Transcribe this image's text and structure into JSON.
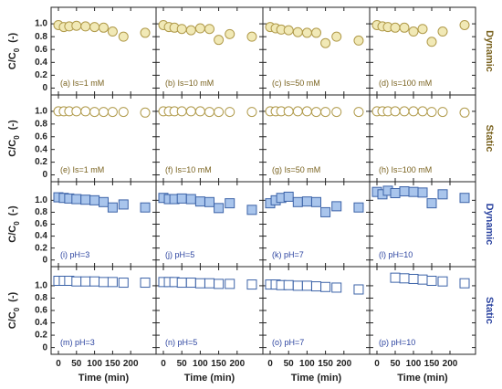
{
  "figure": {
    "ylabel": "C/C",
    "ylabel_sub": "0",
    "ylabel_unit": "(-)",
    "xlabel": "Time (min)",
    "x_ticks": [
      "0",
      "50",
      "100",
      "150",
      "200"
    ],
    "y_ticks": [
      "0",
      "0.2",
      "0.4",
      "0.6",
      "0.8",
      "1.0"
    ],
    "row_labels": [
      "Dynamic",
      "Static",
      "Dynamic",
      "Static"
    ],
    "colors": {
      "ionic_marker_fill": "#f1e9b6",
      "ionic_marker_stroke": "#b09a4a",
      "ionic_text": "#7a6320",
      "ph_marker_fill": "#a9c5ec",
      "ph_marker_stroke": "#3c63a8",
      "ph_text": "#2c44a0",
      "axes": "#222222"
    }
  },
  "chart_data": [
    {
      "type": "scatter",
      "label": "(a) Is=1 mM",
      "x": [
        0,
        15,
        30,
        50,
        75,
        100,
        125,
        150,
        180,
        240
      ],
      "y": [
        0.98,
        0.95,
        0.96,
        0.97,
        0.96,
        0.95,
        0.94,
        0.88,
        0.8,
        0.86
      ],
      "xlim": [
        0,
        250
      ],
      "ylim": [
        -0.05,
        1.2
      ],
      "marker": "circle",
      "series_group": "ionic"
    },
    {
      "type": "scatter",
      "label": "(b) Is=10 mM",
      "x": [
        0,
        15,
        30,
        50,
        75,
        100,
        125,
        150,
        180,
        240
      ],
      "y": [
        0.98,
        0.95,
        0.94,
        0.92,
        0.9,
        0.93,
        0.92,
        0.75,
        0.84,
        0.8
      ],
      "xlim": [
        0,
        250
      ],
      "ylim": [
        -0.05,
        1.2
      ],
      "marker": "circle",
      "series_group": "ionic"
    },
    {
      "type": "scatter",
      "label": "(c) Is=50 mM",
      "x": [
        0,
        15,
        30,
        50,
        75,
        100,
        125,
        150,
        180,
        240
      ],
      "y": [
        0.95,
        0.93,
        0.91,
        0.9,
        0.87,
        0.86,
        0.86,
        0.7,
        0.8,
        0.74
      ],
      "xlim": [
        0,
        250
      ],
      "ylim": [
        -0.05,
        1.2
      ],
      "marker": "circle",
      "series_group": "ionic"
    },
    {
      "type": "scatter",
      "label": "(d) Is=100 mM",
      "x": [
        0,
        15,
        30,
        50,
        75,
        100,
        125,
        150,
        180,
        240
      ],
      "y": [
        0.98,
        0.96,
        0.95,
        0.94,
        0.94,
        0.88,
        0.92,
        0.72,
        0.88,
        0.98
      ],
      "xlim": [
        0,
        250
      ],
      "ylim": [
        -0.05,
        1.2
      ],
      "marker": "circle",
      "series_group": "ionic"
    },
    {
      "type": "scatter",
      "label": "(e) Is=1 mM",
      "x": [
        0,
        15,
        30,
        50,
        75,
        100,
        125,
        150,
        180,
        240
      ],
      "y": [
        1.0,
        1.0,
        1.0,
        1.0,
        1.0,
        0.99,
        0.99,
        0.99,
        0.99,
        0.98
      ],
      "xlim": [
        0,
        250
      ],
      "ylim": [
        -0.05,
        1.2
      ],
      "marker": "circle",
      "series_group": "ionic"
    },
    {
      "type": "scatter",
      "label": "(f) Is=10 mM",
      "x": [
        0,
        15,
        30,
        50,
        75,
        100,
        125,
        150,
        180,
        240
      ],
      "y": [
        1.0,
        1.0,
        1.0,
        1.0,
        1.0,
        1.0,
        0.99,
        0.99,
        0.99,
        0.99
      ],
      "xlim": [
        0,
        250
      ],
      "ylim": [
        -0.05,
        1.2
      ],
      "marker": "circle",
      "series_group": "ionic"
    },
    {
      "type": "scatter",
      "label": "(g) Is=50 mM",
      "x": [
        0,
        15,
        30,
        50,
        75,
        100,
        125,
        150,
        180,
        240
      ],
      "y": [
        1.0,
        1.0,
        1.0,
        1.0,
        1.0,
        1.0,
        0.99,
        0.99,
        0.99,
        0.99
      ],
      "xlim": [
        0,
        250
      ],
      "ylim": [
        -0.05,
        1.2
      ],
      "marker": "circle",
      "series_group": "ionic"
    },
    {
      "type": "scatter",
      "label": "(h) Is=100 mM",
      "x": [
        0,
        15,
        30,
        50,
        75,
        100,
        125,
        150,
        180,
        240
      ],
      "y": [
        1.0,
        1.0,
        1.0,
        1.0,
        1.0,
        1.0,
        1.0,
        0.99,
        0.99,
        0.98
      ],
      "xlim": [
        0,
        250
      ],
      "ylim": [
        -0.05,
        1.2
      ],
      "marker": "circle",
      "series_group": "ionic"
    },
    {
      "type": "scatter",
      "label": "(i) pH=3",
      "x": [
        0,
        15,
        30,
        50,
        75,
        100,
        125,
        150,
        180,
        240
      ],
      "y": [
        1.05,
        1.04,
        1.03,
        1.02,
        1.01,
        1.0,
        0.97,
        0.88,
        0.93,
        0.88
      ],
      "xlim": [
        0,
        250
      ],
      "ylim": [
        -0.05,
        1.25
      ],
      "marker": "square",
      "series_group": "ph"
    },
    {
      "type": "scatter",
      "label": "(j) pH=5",
      "x": [
        0,
        15,
        30,
        50,
        75,
        100,
        125,
        150,
        180,
        240
      ],
      "y": [
        1.04,
        1.02,
        1.02,
        1.03,
        1.02,
        0.98,
        0.97,
        0.87,
        0.95,
        0.84
      ],
      "xlim": [
        0,
        250
      ],
      "ylim": [
        -0.05,
        1.25
      ],
      "marker": "square",
      "series_group": "ph"
    },
    {
      "type": "scatter",
      "label": "(k) pH=7",
      "x": [
        0,
        15,
        30,
        50,
        75,
        100,
        125,
        150,
        180,
        240
      ],
      "y": [
        0.95,
        1.0,
        1.04,
        1.06,
        0.97,
        0.98,
        0.97,
        0.8,
        0.9,
        0.88
      ],
      "xlim": [
        0,
        250
      ],
      "ylim": [
        -0.05,
        1.25
      ],
      "marker": "square",
      "series_group": "ph"
    },
    {
      "type": "scatter",
      "label": "(l) pH=10",
      "x": [
        0,
        15,
        30,
        50,
        75,
        100,
        125,
        150,
        180,
        240
      ],
      "y": [
        1.14,
        1.1,
        1.16,
        1.12,
        1.15,
        1.14,
        1.13,
        0.95,
        1.1,
        1.04
      ],
      "xlim": [
        0,
        250
      ],
      "ylim": [
        -0.05,
        1.25
      ],
      "marker": "square",
      "series_group": "ph"
    },
    {
      "type": "scatter",
      "label": "(m) pH=3",
      "x": [
        0,
        15,
        30,
        50,
        75,
        100,
        125,
        150,
        180,
        240
      ],
      "y": [
        1.08,
        1.08,
        1.08,
        1.07,
        1.07,
        1.07,
        1.06,
        1.06,
        1.05,
        1.05
      ],
      "xlim": [
        0,
        250
      ],
      "ylim": [
        -0.05,
        1.25
      ],
      "marker": "square",
      "series_group": "ph"
    },
    {
      "type": "scatter",
      "label": "(n) pH=5",
      "x": [
        0,
        15,
        30,
        50,
        75,
        100,
        125,
        150,
        180,
        240
      ],
      "y": [
        1.06,
        1.06,
        1.06,
        1.05,
        1.05,
        1.04,
        1.04,
        1.03,
        1.03,
        1.02
      ],
      "xlim": [
        0,
        250
      ],
      "ylim": [
        -0.05,
        1.25
      ],
      "marker": "square",
      "series_group": "ph"
    },
    {
      "type": "scatter",
      "label": "(o) pH=7",
      "x": [
        0,
        15,
        30,
        50,
        75,
        100,
        125,
        150,
        180,
        240
      ],
      "y": [
        1.02,
        1.02,
        1.01,
        1.01,
        1.0,
        1.0,
        0.99,
        0.98,
        0.97,
        0.94
      ],
      "xlim": [
        0,
        250
      ],
      "ylim": [
        -0.05,
        1.25
      ],
      "marker": "square",
      "series_group": "ph"
    },
    {
      "type": "scatter",
      "label": "(p) pH=10",
      "x": [
        50,
        75,
        100,
        125,
        150,
        180,
        240
      ],
      "y": [
        1.13,
        1.12,
        1.11,
        1.1,
        1.08,
        1.07,
        1.04
      ],
      "xlim": [
        0,
        250
      ],
      "ylim": [
        -0.05,
        1.25
      ],
      "marker": "square",
      "series_group": "ph"
    }
  ]
}
